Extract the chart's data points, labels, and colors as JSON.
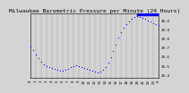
{
  "title": "Milwaukee Barometric Pressure per Minute (24 Hours)",
  "bg_color": "#d4d4d4",
  "plot_bg_color": "#d4d4d4",
  "dot_color": "#0000ff",
  "highlight_color": "#0000ff",
  "grid_color": "#888888",
  "ylabel_color": "#000000",
  "ylim": [
    29.37,
    30.08
  ],
  "xlim": [
    0,
    1440
  ],
  "yticks": [
    29.4,
    29.5,
    29.6,
    29.7,
    29.8,
    29.9,
    30.0
  ],
  "ytick_labels": [
    "29.4",
    "29.5",
    "29.6",
    "29.7",
    "29.8",
    "29.9",
    "30.0"
  ],
  "xticks": [
    0,
    60,
    120,
    180,
    240,
    300,
    360,
    420,
    480,
    540,
    600,
    660,
    720,
    780,
    840,
    900,
    960,
    1020,
    1080,
    1140,
    1200,
    1260,
    1320,
    1380,
    1440
  ],
  "xtick_labels": [
    "0",
    "1",
    "2",
    "3",
    "4",
    "5",
    "6",
    "7",
    "8",
    "9",
    "10",
    "11",
    "12",
    "13",
    "14",
    "15",
    "16",
    "17",
    "18",
    "19",
    "20",
    "21",
    "22",
    "23",
    "0"
  ],
  "data_x": [
    0,
    30,
    60,
    90,
    120,
    150,
    180,
    210,
    240,
    270,
    300,
    330,
    360,
    390,
    420,
    450,
    480,
    510,
    540,
    570,
    600,
    630,
    660,
    690,
    720,
    750,
    780,
    810,
    840,
    870,
    900,
    930,
    960,
    990,
    1020,
    1050,
    1080,
    1110,
    1140,
    1170,
    1200,
    1230,
    1260,
    1290,
    1320,
    1350,
    1380,
    1410,
    1440
  ],
  "data_y": [
    29.72,
    29.68,
    29.63,
    29.59,
    29.55,
    29.52,
    29.5,
    29.49,
    29.48,
    29.47,
    29.46,
    29.45,
    29.45,
    29.46,
    29.47,
    29.49,
    29.5,
    29.51,
    29.5,
    29.49,
    29.48,
    29.47,
    29.46,
    29.45,
    29.44,
    29.43,
    29.44,
    29.46,
    29.49,
    29.54,
    29.6,
    29.67,
    29.74,
    29.81,
    29.87,
    29.92,
    29.96,
    29.99,
    30.02,
    30.04,
    30.05,
    30.04,
    30.03,
    30.02,
    30.0,
    29.99,
    29.97,
    29.96,
    29.95
  ],
  "current_x_start": 1200,
  "title_fontsize": 4.5,
  "tick_fontsize": 3.0,
  "marker_size": 0.8,
  "highlight_ymin": 30.06,
  "highlight_ymax": 30.08
}
